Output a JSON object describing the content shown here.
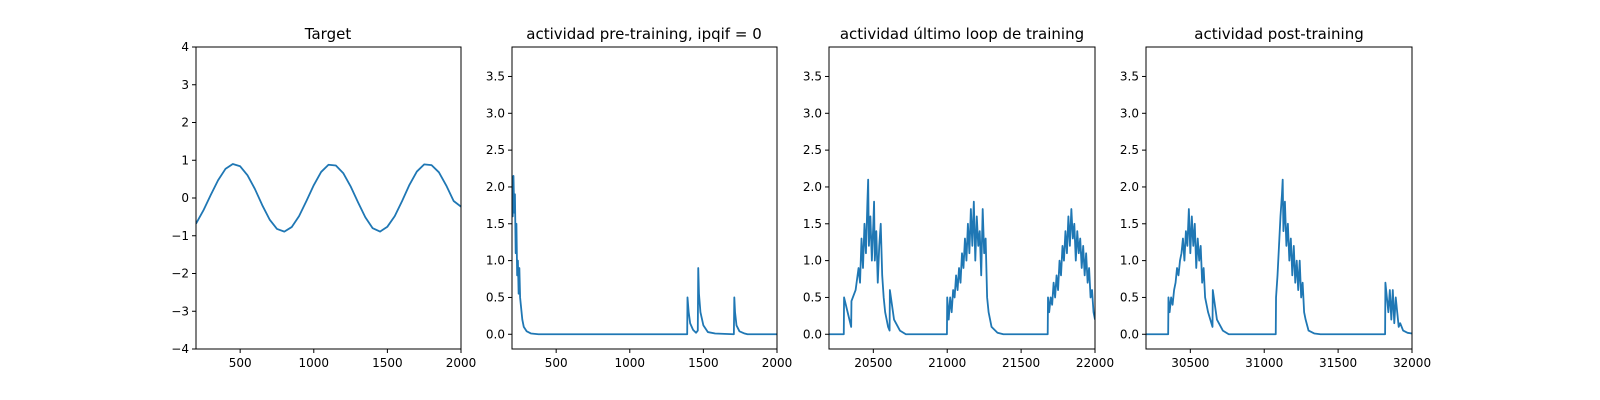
{
  "chart_data": [
    {
      "type": "line",
      "title": "Target",
      "xlim": [
        200,
        2000
      ],
      "ylim": [
        -4,
        4
      ],
      "xticks": [
        500,
        1000,
        1500,
        2000
      ],
      "xtick_labels": [
        "500",
        "1000",
        "1500",
        "2000"
      ],
      "yticks": [
        -4,
        -3,
        -2,
        -1,
        0,
        1,
        2,
        3,
        4
      ],
      "ytick_labels": [
        "−4",
        "−3",
        "−2",
        "−1",
        "0",
        "1",
        "2",
        "3",
        "4"
      ],
      "color": "#1f77b4",
      "series": [
        {
          "x": [
            200,
            250,
            300,
            350,
            400,
            450,
            500,
            550,
            600,
            650,
            700,
            750,
            800,
            850,
            900,
            950,
            1000,
            1050,
            1100,
            1150,
            1200,
            1250,
            1300,
            1350,
            1400,
            1450,
            1500,
            1550,
            1600,
            1650,
            1700,
            1750,
            1800,
            1850,
            1900,
            1950,
            2000
          ],
          "y": [
            -0.68,
            -0.33,
            0.08,
            0.47,
            0.77,
            0.9,
            0.84,
            0.6,
            0.24,
            -0.19,
            -0.57,
            -0.82,
            -0.89,
            -0.77,
            -0.48,
            -0.08,
            0.34,
            0.69,
            0.88,
            0.86,
            0.66,
            0.31,
            -0.11,
            -0.51,
            -0.8,
            -0.89,
            -0.76,
            -0.48,
            -0.08,
            0.35,
            0.7,
            0.89,
            0.87,
            0.68,
            0.33,
            -0.08,
            -0.23
          ]
        }
      ]
    },
    {
      "type": "line",
      "title": "actividad pre-training, ipqif = 0",
      "xlim": [
        200,
        2000
      ],
      "ylim": [
        -0.2,
        3.9
      ],
      "xticks": [
        500,
        1000,
        1500,
        2000
      ],
      "xtick_labels": [
        "500",
        "1000",
        "1500",
        "2000"
      ],
      "yticks": [
        0,
        0.5,
        1,
        1.5,
        2,
        2.5,
        3,
        3.5
      ],
      "ytick_labels": [
        "0.0",
        "0.5",
        "1.0",
        "1.5",
        "2.0",
        "2.5",
        "3.0",
        "3.5"
      ],
      "color": "#1f77b4",
      "series": [
        {
          "x": [
            200,
            205,
            210,
            215,
            220,
            225,
            230,
            235,
            240,
            245,
            250,
            255,
            260,
            270,
            280,
            300,
            330,
            380,
            1390,
            1392,
            1400,
            1410,
            1430,
            1450,
            1462,
            1465,
            1470,
            1480,
            1500,
            1530,
            1580,
            1707,
            1710,
            1715,
            1725,
            1745,
            1780,
            1800,
            2000
          ],
          "y": [
            2.15,
            1.6,
            2.15,
            1.65,
            1.9,
            1.1,
            1.5,
            0.8,
            1.0,
            0.55,
            0.9,
            0.5,
            0.4,
            0.2,
            0.1,
            0.04,
            0.01,
            0,
            0,
            0.5,
            0.3,
            0.15,
            0.06,
            0.02,
            0.05,
            0.9,
            0.55,
            0.3,
            0.12,
            0.03,
            0.01,
            0,
            0.5,
            0.3,
            0.12,
            0.04,
            0.01,
            0,
            0
          ]
        }
      ]
    },
    {
      "type": "line",
      "title": "actividad último loop de training",
      "xlim": [
        20200,
        22000
      ],
      "ylim": [
        -0.2,
        3.9
      ],
      "xticks": [
        20500,
        21000,
        21500,
        22000
      ],
      "xtick_labels": [
        "20500",
        "21000",
        "21500",
        "22000"
      ],
      "yticks": [
        0,
        0.5,
        1,
        1.5,
        2,
        2.5,
        3,
        3.5
      ],
      "ytick_labels": [
        "0.0",
        "0.5",
        "1.0",
        "1.5",
        "2.0",
        "2.5",
        "3.0",
        "3.5"
      ],
      "color": "#1f77b4",
      "series": [
        {
          "x": [
            20200,
            20300,
            20302,
            20320,
            20350,
            20352,
            20380,
            20400,
            20410,
            20420,
            20430,
            20440,
            20450,
            20460,
            20465,
            20470,
            20480,
            20490,
            20500,
            20505,
            20510,
            20520,
            20530,
            20540,
            20550,
            20560,
            20570,
            20580,
            20600,
            20610,
            20612,
            20640,
            20680,
            20720,
            20998,
            21000,
            21010,
            21020,
            21030,
            21040,
            21050,
            21060,
            21070,
            21080,
            21090,
            21100,
            21110,
            21120,
            21130,
            21140,
            21150,
            21160,
            21170,
            21180,
            21190,
            21200,
            21210,
            21220,
            21230,
            21240,
            21250,
            21260,
            21270,
            21280,
            21300,
            21340,
            21380,
            21680,
            21682,
            21690,
            21700,
            21710,
            21720,
            21730,
            21740,
            21750,
            21760,
            21770,
            21780,
            21790,
            21800,
            21810,
            21820,
            21830,
            21840,
            21850,
            21860,
            21870,
            21880,
            21890,
            21900,
            21910,
            21920,
            21930,
            21940,
            21950,
            21960,
            21970,
            21980,
            21990,
            22000
          ],
          "y": [
            0,
            0,
            0.5,
            0.35,
            0.1,
            0.45,
            0.6,
            0.9,
            0.7,
            1.3,
            0.9,
            1.5,
            1.1,
            1.8,
            2.1,
            1.2,
            1.6,
            1.0,
            1.5,
            1.8,
            1.0,
            1.4,
            0.7,
            1.2,
            1.5,
            0.8,
            0.5,
            0.3,
            0.1,
            0.05,
            0.6,
            0.2,
            0.05,
            0.0,
            0,
            0.5,
            0.2,
            0.5,
            0.3,
            0.6,
            0.5,
            0.8,
            0.6,
            0.9,
            0.7,
            1.1,
            0.9,
            1.3,
            1.0,
            1.5,
            1.1,
            1.7,
            1.2,
            1.8,
            1.0,
            1.6,
            1.2,
            1.4,
            0.8,
            1.7,
            1.1,
            1.3,
            0.5,
            0.3,
            0.1,
            0.02,
            0,
            0,
            0.5,
            0.3,
            0.5,
            0.4,
            0.7,
            0.5,
            0.8,
            0.6,
            1.0,
            0.8,
            1.2,
            1.0,
            1.4,
            1.1,
            1.6,
            1.2,
            1.7,
            1.3,
            1.5,
            1.0,
            1.4,
            1.1,
            1.3,
            0.9,
            1.2,
            0.8,
            1.1,
            0.7,
            0.9,
            0.5,
            0.6,
            0.3,
            0.2
          ]
        }
      ]
    },
    {
      "type": "line",
      "title": "actividad post-training",
      "xlim": [
        30200,
        32000
      ],
      "ylim": [
        -0.2,
        3.9
      ],
      "xticks": [
        30500,
        31000,
        31500,
        32000
      ],
      "xtick_labels": [
        "30500",
        "31000",
        "31500",
        "32000"
      ],
      "yticks": [
        0,
        0.5,
        1,
        1.5,
        2,
        2.5,
        3,
        3.5
      ],
      "ytick_labels": [
        "0.0",
        "0.5",
        "1.0",
        "1.5",
        "2.0",
        "2.5",
        "3.0",
        "3.5"
      ],
      "color": "#1f77b4",
      "series": [
        {
          "x": [
            30200,
            30350,
            30352,
            30360,
            30370,
            30380,
            30390,
            30400,
            30410,
            30420,
            30430,
            30440,
            30450,
            30460,
            30470,
            30480,
            30490,
            30500,
            30510,
            30520,
            30530,
            30540,
            30550,
            30560,
            30570,
            30580,
            30590,
            30600,
            30620,
            30650,
            30652,
            30680,
            30720,
            30760,
            31078,
            31080,
            31090,
            31100,
            31110,
            31120,
            31125,
            31130,
            31140,
            31150,
            31160,
            31170,
            31180,
            31190,
            31200,
            31210,
            31220,
            31230,
            31240,
            31250,
            31260,
            31270,
            31280,
            31300,
            31340,
            31380,
            31818,
            31820,
            31830,
            31840,
            31850,
            31860,
            31870,
            31880,
            31890,
            31900,
            31910,
            31920,
            31940,
            31970,
            32000
          ],
          "y": [
            0,
            0,
            0.5,
            0.3,
            0.5,
            0.4,
            0.6,
            0.7,
            0.9,
            0.8,
            1.0,
            1.1,
            1.3,
            1.0,
            1.4,
            1.2,
            1.7,
            1.1,
            1.6,
            1.2,
            1.5,
            0.9,
            1.3,
            1.0,
            1.2,
            0.7,
            0.9,
            0.5,
            0.3,
            0.1,
            0.6,
            0.2,
            0.05,
            0.0,
            0,
            0.5,
            0.8,
            1.2,
            1.6,
            1.9,
            2.1,
            1.4,
            1.8,
            1.2,
            1.5,
            1.0,
            1.3,
            0.8,
            1.2,
            0.7,
            1.0,
            0.6,
            1.0,
            0.5,
            0.7,
            0.3,
            0.2,
            0.05,
            0.01,
            0,
            0,
            0.7,
            0.5,
            0.3,
            0.6,
            0.2,
            0.6,
            0.15,
            0.5,
            0.3,
            0.1,
            0.15,
            0.05,
            0.02,
            0.01
          ]
        }
      ]
    }
  ]
}
